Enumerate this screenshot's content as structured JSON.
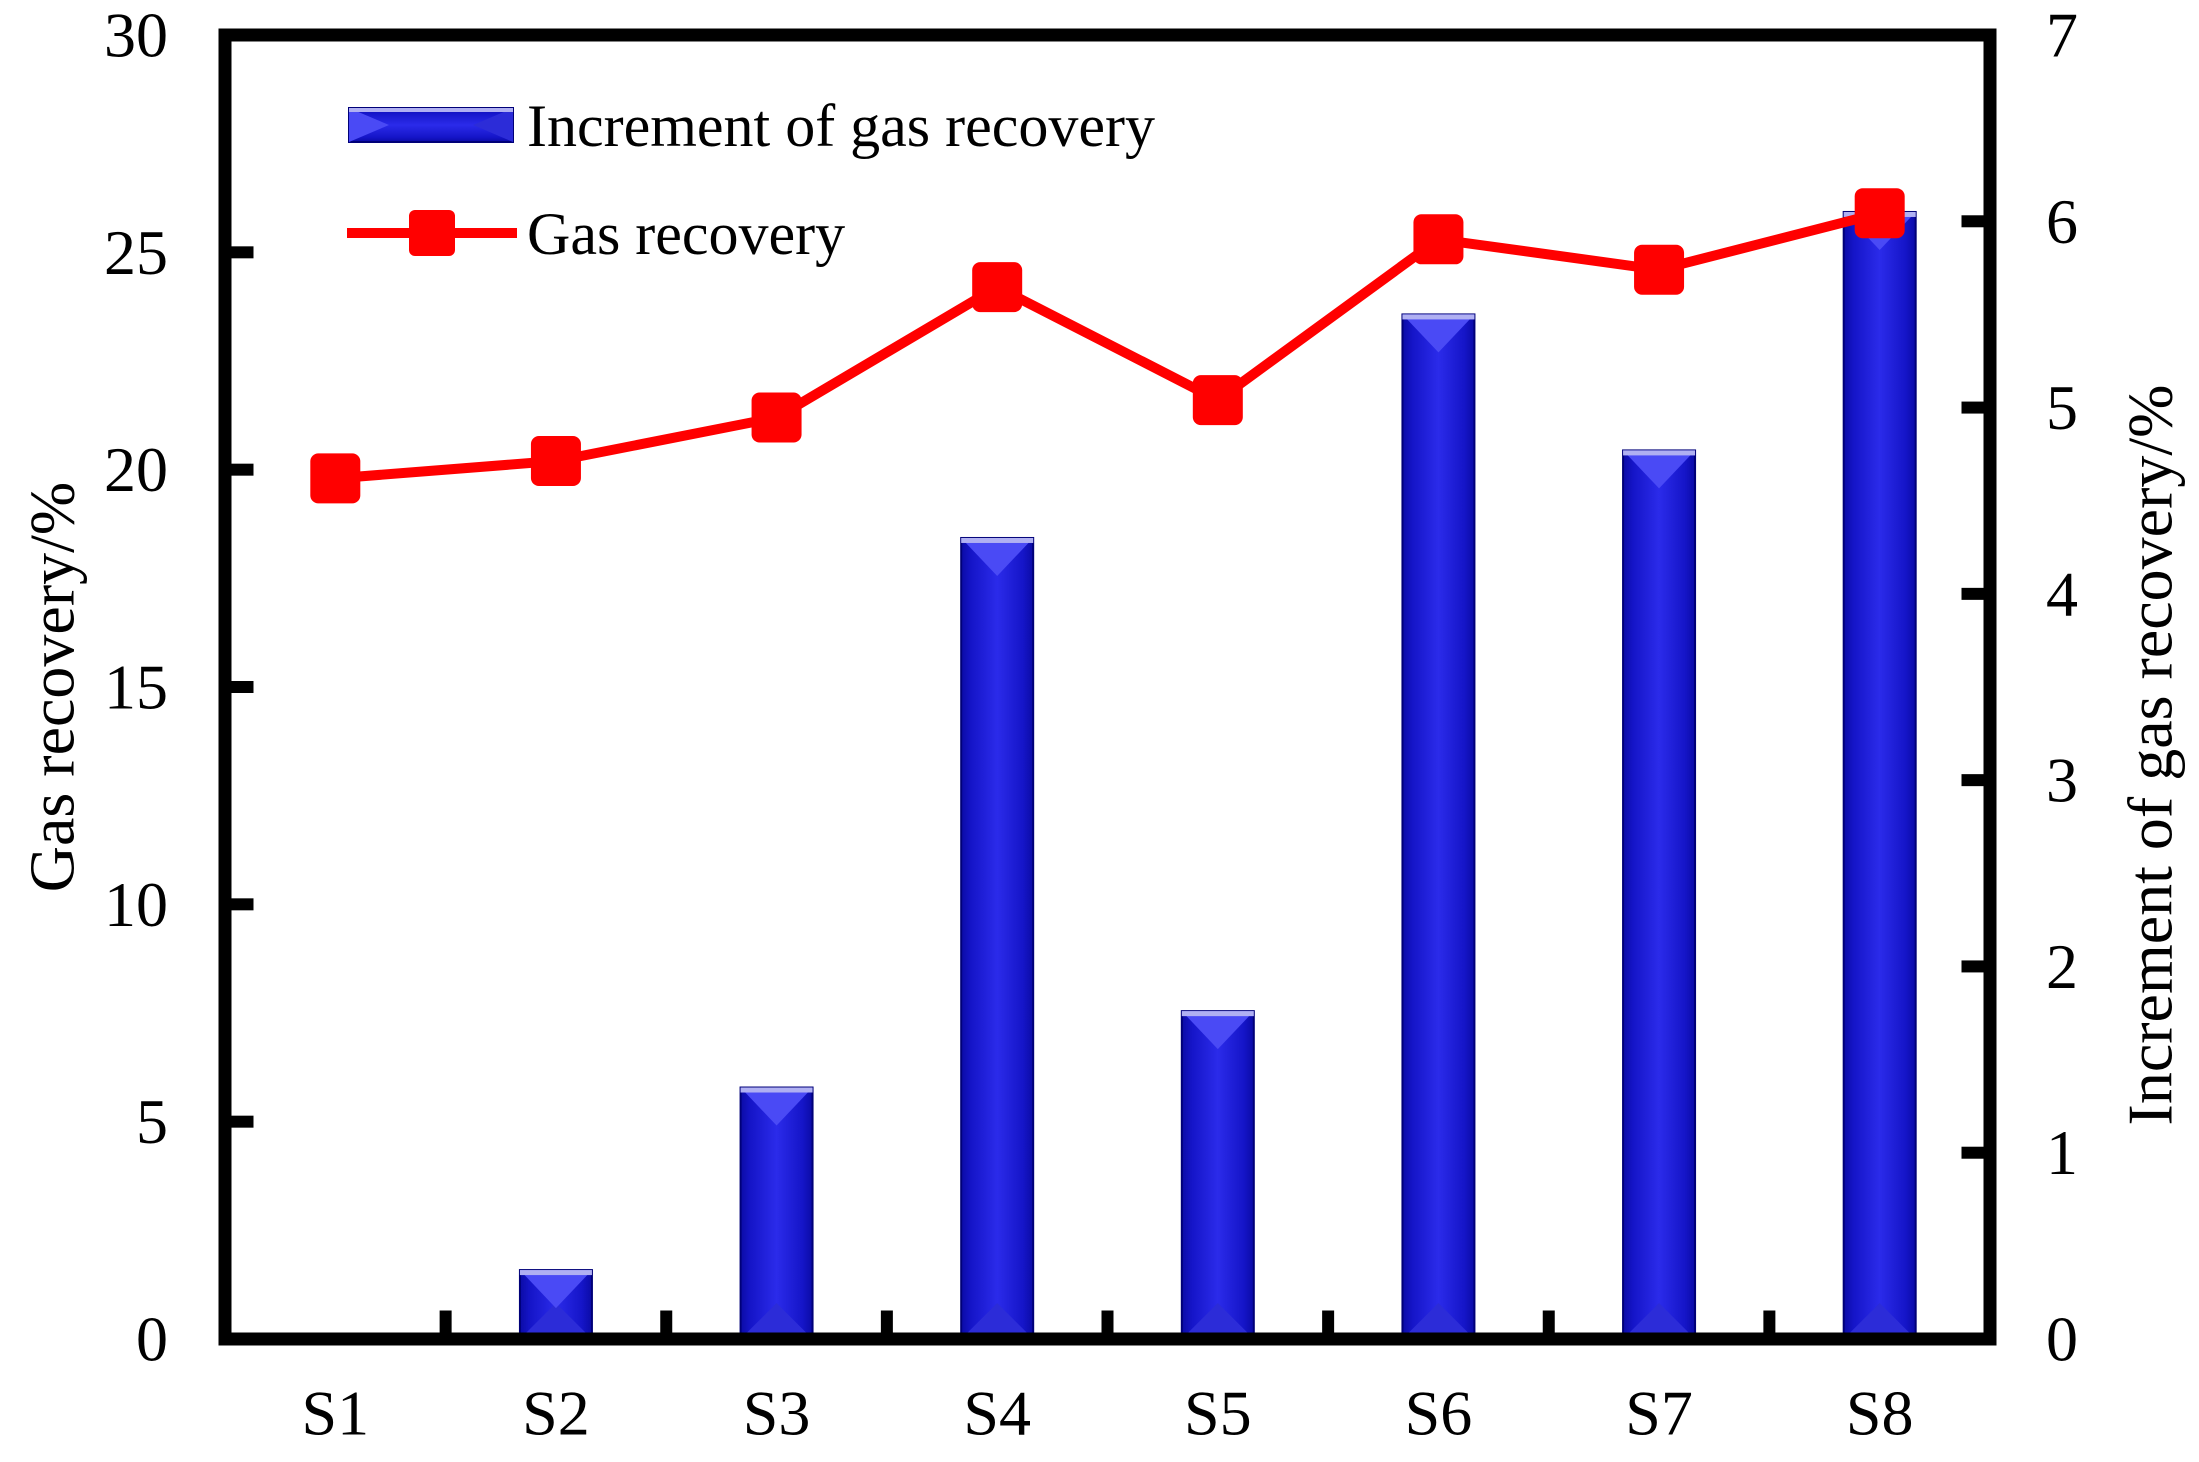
{
  "chart_data": {
    "type": "combo-bar-line",
    "categories": [
      "S1",
      "S2",
      "S3",
      "S4",
      "S5",
      "S6",
      "S7",
      "S8"
    ],
    "series": [
      {
        "name": "Increment of gas recovery",
        "type": "bar",
        "axis": "right",
        "color": "#1C1CE0",
        "values": [
          0,
          0.37,
          1.35,
          4.3,
          1.76,
          5.5,
          4.77,
          6.05
        ]
      },
      {
        "name": "Gas recovery",
        "type": "line",
        "axis": "left",
        "color": "#FF0000",
        "marker": "square",
        "values": [
          19.8,
          20.2,
          21.2,
          24.2,
          21.6,
          25.3,
          24.6,
          25.9
        ]
      }
    ],
    "left_axis": {
      "title": "Gas recovery/%",
      "min": 0,
      "max": 30,
      "tick_labels": [
        "0",
        "5",
        "10",
        "15",
        "20",
        "25",
        "30"
      ]
    },
    "right_axis": {
      "title": "Increment of gas recovery/%",
      "min": 0,
      "max": 7,
      "tick_labels": [
        "0",
        "1",
        "2",
        "3",
        "4",
        "5",
        "6",
        "7"
      ]
    },
    "legend_position": "top-left-inside",
    "grid": false,
    "background": "#FFFFFF",
    "colors": {
      "bar_body": "#2222E8",
      "bar_edge": "#0C0CAD",
      "bar_bevel_light": "#4A4AF5",
      "bar_bevel_shadow": "#2C2CD8",
      "bar_top_cap": "#B0B0F2",
      "bar_outline": "#000078",
      "line_red": "#FF0000",
      "axis_black": "#000000"
    }
  }
}
